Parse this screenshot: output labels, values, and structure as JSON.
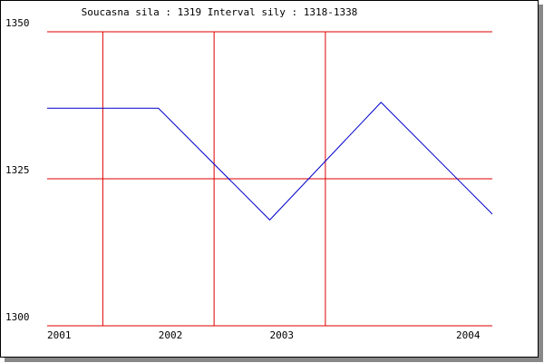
{
  "chart_data": {
    "type": "line",
    "title": "Soucasna sila : 1319  Interval sily : 1318-1338",
    "categories": [
      "2001",
      "2002",
      "2003",
      null,
      "2004"
    ],
    "series": [
      {
        "name": "sila",
        "color": "#0000cc",
        "values": [
          1337,
          1337,
          1318,
          1338,
          1319
        ]
      }
    ],
    "ylim": [
      1300,
      1350
    ],
    "yticks": [
      1300,
      1325,
      1350
    ],
    "grid": true,
    "grid_color": "#dd0000"
  }
}
